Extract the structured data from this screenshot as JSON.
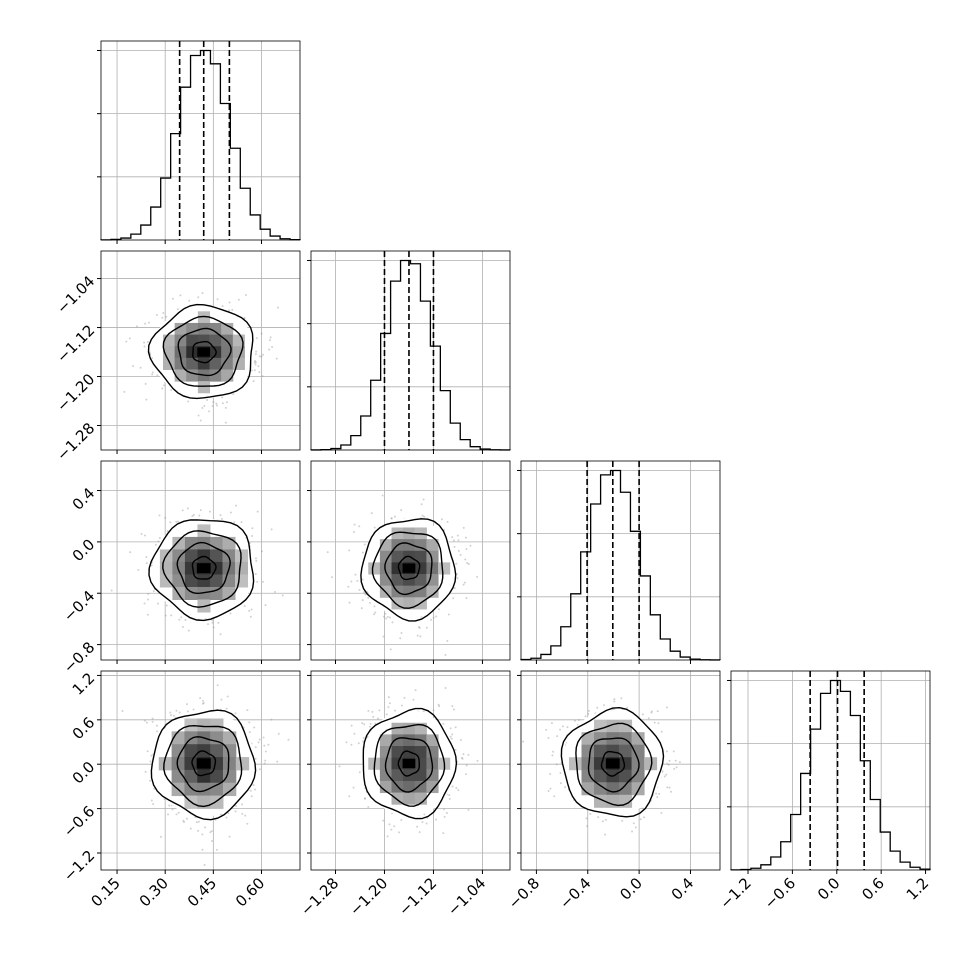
{
  "chart_data": {
    "type": "corner",
    "description_visible": false,
    "parameters": [
      {
        "index": 0,
        "range": [
          0.1,
          0.72
        ],
        "ticks": [
          0.15,
          0.3,
          0.45,
          0.6
        ],
        "tick_labels": [
          "0.15",
          "0.30",
          "0.45",
          "0.60"
        ],
        "mean": 0.42,
        "sd": 0.08,
        "quantiles": [
          0.345,
          0.42,
          0.5
        ]
      },
      {
        "index": 1,
        "range": [
          -1.32,
          -0.995
        ],
        "ticks": [
          -1.28,
          -1.2,
          -1.12,
          -1.04
        ],
        "tick_labels": [
          "−1.28",
          "−1.20",
          "−1.12",
          "−1.04"
        ],
        "mean": -1.16,
        "sd": 0.038,
        "quantiles": [
          -1.2,
          -1.16,
          -1.12
        ]
      },
      {
        "index": 2,
        "range": [
          -0.92,
          0.63
        ],
        "ticks": [
          -0.8,
          -0.4,
          0.0,
          0.4
        ],
        "tick_labels": [
          "−0.8",
          "−0.4",
          "0.0",
          "0.4"
        ],
        "mean": -0.205,
        "sd": 0.195,
        "quantiles": [
          -0.405,
          -0.205,
          0.0
        ]
      },
      {
        "index": 3,
        "range": [
          -1.43,
          1.26
        ],
        "ticks": [
          -1.2,
          -0.6,
          0.0,
          0.6,
          1.2
        ],
        "tick_labels": [
          "−1.2",
          "−0.6",
          "0.0",
          "0.6",
          "1.2"
        ],
        "mean": 0.01,
        "sd": 0.36,
        "quantiles": [
          -0.36,
          0.01,
          0.37
        ]
      }
    ],
    "contour_levels_sigma": [
      0.5,
      1.0,
      1.5,
      2.0
    ],
    "histogram_bins": 20,
    "quantile_line_style": "dashed",
    "grid": true,
    "colors": {
      "line": "#000000",
      "grid": "#b0b0b0",
      "scatter": "#9a9a9a",
      "density_max": "#000000"
    }
  }
}
